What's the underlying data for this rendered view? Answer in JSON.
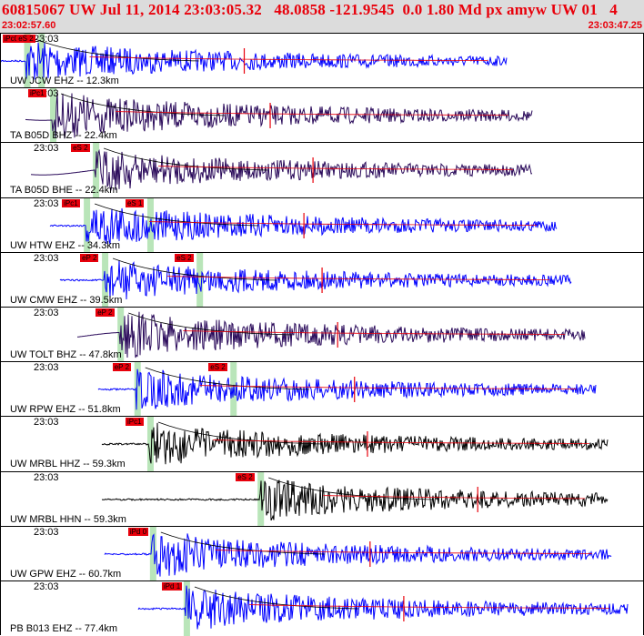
{
  "header": {
    "title": "60815067 UW Jul 11, 2014 23:03:05.32   48.0858 -121.9545  0.0 1.80 Md px amyw UW 01   4",
    "start_time": "23:02:57.60",
    "end_time": "23:03:47.25"
  },
  "colors": {
    "header_bg": "#dcdcdc",
    "title": "#e8000b",
    "pick_flag": "#e8000b",
    "pick_window": "#b9e5b9",
    "blue_trace": "#0000ff",
    "dark_trace": "#2a0a5a",
    "black_trace": "#000000",
    "decay_curve": "#000000",
    "coda_fit": "#e8000b"
  },
  "panels": [
    {
      "time_label": "23:03",
      "channel": "UW JCW EHZ -- 12.3km",
      "color": "blue",
      "picks": [
        {
          "label": "iPc0",
          "t": 2.0
        },
        {
          "label": "eS 2",
          "t": 3.1
        }
      ]
    },
    {
      "time_label": "23:03",
      "channel": "TA B05D BHZ -- 22.4km",
      "color": "dark",
      "picks": [
        {
          "label": "iPc1",
          "t": 4.0
        }
      ]
    },
    {
      "time_label": "23:03",
      "channel": "TA B05D BHE -- 22.4km",
      "color": "dark",
      "picks": [
        {
          "label": "eS 2",
          "t": 7.3
        }
      ]
    },
    {
      "time_label": "23:03",
      "channel": "UW HTW EHZ -- 34.3km",
      "color": "blue",
      "picks": [
        {
          "label": "iPc1",
          "t": 6.6
        },
        {
          "label": "eS 1",
          "t": 11.5
        }
      ]
    },
    {
      "time_label": "23:03",
      "channel": "UW CMW EHZ -- 39.5km",
      "color": "blue",
      "picks": [
        {
          "label": "eP 2",
          "t": 8.0
        },
        {
          "label": "eS 2",
          "t": 15.3
        }
      ]
    },
    {
      "time_label": "23:03",
      "channel": "UW TOLT BHZ -- 47.8km",
      "color": "dark",
      "picks": [
        {
          "label": "eP 2",
          "t": 9.2
        }
      ]
    },
    {
      "time_label": "23:03",
      "channel": "UW RPW EHZ -- 51.8km",
      "color": "blue",
      "picks": [
        {
          "label": "eP 2",
          "t": 10.5
        },
        {
          "label": "eS 2",
          "t": 17.9
        }
      ]
    },
    {
      "time_label": "23:03",
      "channel": "UW MRBL HHZ -- 59.3km",
      "color": "black",
      "picks": [
        {
          "label": "iPc1",
          "t": 11.5
        }
      ]
    },
    {
      "time_label": "23:03",
      "channel": "UW MRBL HHN -- 59.3km",
      "color": "black",
      "picks": [
        {
          "label": "eS 2",
          "t": 20.0
        }
      ]
    },
    {
      "time_label": "23:03",
      "channel": "UW GPW EHZ -- 60.7km",
      "color": "blue",
      "picks": [
        {
          "label": "iPd 0",
          "t": 11.7
        }
      ]
    },
    {
      "time_label": "23:03",
      "channel": "PB B013 EHZ -- 77.4km",
      "color": "blue",
      "picks": [
        {
          "label": "iPd 1",
          "t": 14.3
        }
      ]
    }
  ]
}
